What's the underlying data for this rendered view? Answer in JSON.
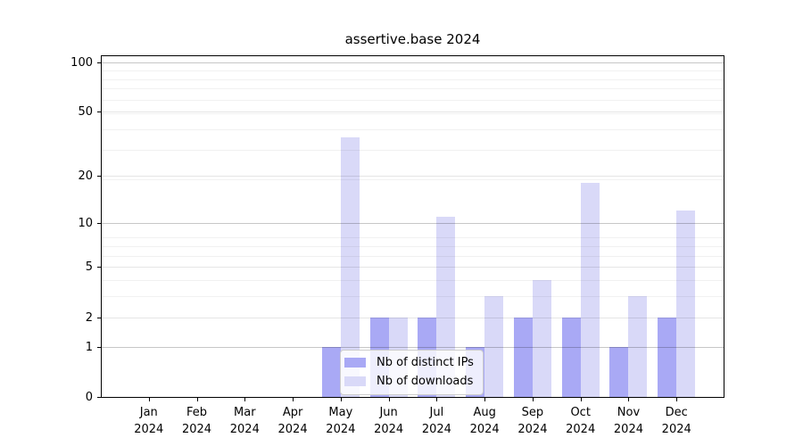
{
  "chart_data": {
    "type": "bar",
    "title": "assertive.base 2024",
    "categories": [
      "Jan 2024",
      "Feb 2024",
      "Mar 2024",
      "Apr 2024",
      "May 2024",
      "Jun 2024",
      "Jul 2024",
      "Aug 2024",
      "Sep 2024",
      "Oct 2024",
      "Nov 2024",
      "Dec 2024"
    ],
    "months": [
      "Jan",
      "Feb",
      "Mar",
      "Apr",
      "May",
      "Jun",
      "Jul",
      "Aug",
      "Sep",
      "Oct",
      "Nov",
      "Dec"
    ],
    "year": "2024",
    "series": [
      {
        "name": "Nb of distinct IPs",
        "color": "#a9a9f5",
        "values": [
          0,
          0,
          0,
          0,
          1,
          2,
          2,
          1,
          2,
          2,
          1,
          2
        ]
      },
      {
        "name": "Nb of downloads",
        "color": "#d9d9f8",
        "values": [
          0,
          0,
          0,
          0,
          35,
          2,
          11,
          3,
          4,
          18,
          3,
          12
        ]
      }
    ],
    "y_axis": {
      "scale": "log1p",
      "ticks": [
        0,
        1,
        2,
        5,
        10,
        20,
        50,
        100
      ],
      "range": [
        0,
        110
      ]
    },
    "legend": {
      "position": "lower-center",
      "entries": [
        "Nb of distinct IPs",
        "Nb of downloads"
      ]
    },
    "grid": "both",
    "colors": {
      "grid_major_dark": "rgba(0,0,0,0.22)",
      "grid_major_mid": "rgba(0,0,0,0.10)",
      "grid_minor": "rgba(0,0,0,0.055)",
      "axis": "#000000",
      "background": "#ffffff"
    }
  }
}
